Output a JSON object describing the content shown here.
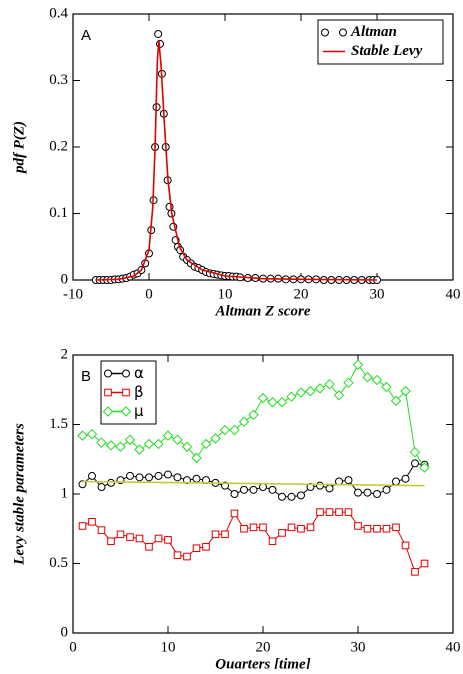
{
  "chart_data": [
    {
      "type": "line",
      "label": "A",
      "xlabel": "Altman Z score",
      "ylabel": "pdf P(Z)",
      "xlim": [
        -10,
        40
      ],
      "xticks": [
        -10,
        0,
        10,
        20,
        30,
        40
      ],
      "ylim": [
        0,
        0.4
      ],
      "yticks": [
        0,
        0.1,
        0.2,
        0.3,
        0.4
      ],
      "legend": "upper right",
      "series": [
        {
          "name": "Altman",
          "color": "#000000",
          "marker": "circle",
          "line": false,
          "x": [
            -7,
            -6.5,
            -6,
            -5.5,
            -5,
            -4.5,
            -4,
            -3.5,
            -3,
            -2.5,
            -2,
            -1.5,
            -1,
            -0.5,
            0,
            0.3,
            0.6,
            0.8,
            1.0,
            1.2,
            1.45,
            1.7,
            1.95,
            2.2,
            2.45,
            2.7,
            2.95,
            3.2,
            3.5,
            3.8,
            4.1,
            4.5,
            5,
            5.5,
            6,
            6.5,
            7,
            7.5,
            8,
            8.5,
            9,
            9.5,
            10,
            10.5,
            11,
            11.5,
            12,
            13,
            14,
            15,
            16,
            17,
            18,
            19,
            20,
            21,
            22,
            23,
            24,
            25,
            26,
            27,
            28,
            29,
            29.5,
            30
          ],
          "values": [
            0,
            0,
            0,
            0,
            0,
            0.001,
            0.001,
            0.002,
            0.003,
            0.005,
            0.008,
            0.01,
            0.015,
            0.025,
            0.04,
            0.075,
            0.12,
            0.2,
            0.26,
            0.37,
            0.355,
            0.31,
            0.25,
            0.2,
            0.15,
            0.11,
            0.1,
            0.08,
            0.06,
            0.05,
            0.045,
            0.035,
            0.03,
            0.025,
            0.02,
            0.018,
            0.015,
            0.012,
            0.01,
            0.009,
            0.008,
            0.007,
            0.006,
            0.006,
            0.005,
            0.005,
            0.004,
            0.003,
            0.003,
            0.002,
            0.002,
            0.002,
            0.001,
            0.001,
            0.001,
            0.001,
            0.001,
            0,
            0,
            0,
            0,
            0,
            0,
            0,
            0,
            0
          ]
        },
        {
          "name": "Stable Levy",
          "color": "#e00000",
          "marker": "none",
          "line": true,
          "x": [
            -7,
            -4,
            -2,
            -1,
            0,
            0.5,
            0.8,
            1.1,
            1.3,
            1.6,
            2,
            2.5,
            3,
            4,
            5,
            7,
            10,
            15,
            20,
            30
          ],
          "values": [
            0,
            0.001,
            0.006,
            0.015,
            0.045,
            0.11,
            0.2,
            0.33,
            0.36,
            0.32,
            0.24,
            0.15,
            0.1,
            0.05,
            0.03,
            0.015,
            0.006,
            0.002,
            0.001,
            0
          ]
        }
      ]
    },
    {
      "type": "line",
      "label": "B",
      "xlabel": "Quarters [time]",
      "ylabel": "Levy stable parameters",
      "xlim": [
        0,
        40
      ],
      "xticks": [
        0,
        10,
        20,
        30,
        40
      ],
      "ylim": [
        0,
        2
      ],
      "yticks": [
        0,
        0.5,
        1,
        1.5,
        2
      ],
      "legend": "upper left",
      "x": [
        1,
        2,
        3,
        4,
        5,
        6,
        7,
        8,
        9,
        10,
        11,
        12,
        13,
        14,
        15,
        16,
        17,
        18,
        19,
        20,
        21,
        22,
        23,
        24,
        25,
        26,
        27,
        28,
        29,
        30,
        31,
        32,
        33,
        34,
        35,
        36,
        37
      ],
      "series": [
        {
          "name": "α",
          "color": "#000000",
          "marker": "circle",
          "line": true,
          "values": [
            1.07,
            1.13,
            1.05,
            1.08,
            1.1,
            1.13,
            1.12,
            1.12,
            1.13,
            1.14,
            1.12,
            1.1,
            1.11,
            1.1,
            1.08,
            1.06,
            1.0,
            1.03,
            1.03,
            1.05,
            1.03,
            0.98,
            0.98,
            0.99,
            1.05,
            1.06,
            1.04,
            1.09,
            1.1,
            1.01,
            1.01,
            1.0,
            1.03,
            1.09,
            1.11,
            1.22,
            1.21
          ]
        },
        {
          "name": "β",
          "color": "#e00000",
          "marker": "square",
          "line": true,
          "values": [
            0.77,
            0.8,
            0.74,
            0.66,
            0.71,
            0.69,
            0.68,
            0.62,
            0.68,
            0.67,
            0.56,
            0.55,
            0.61,
            0.62,
            0.71,
            0.71,
            0.86,
            0.75,
            0.76,
            0.76,
            0.66,
            0.72,
            0.76,
            0.75,
            0.76,
            0.87,
            0.87,
            0.87,
            0.87,
            0.77,
            0.75,
            0.75,
            0.75,
            0.76,
            0.63,
            0.44,
            0.5
          ]
        },
        {
          "name": "μ",
          "color": "#22dd22",
          "marker": "diamond",
          "line": true,
          "values": [
            1.42,
            1.43,
            1.37,
            1.35,
            1.34,
            1.39,
            1.32,
            1.36,
            1.36,
            1.42,
            1.39,
            1.34,
            1.26,
            1.36,
            1.4,
            1.46,
            1.46,
            1.52,
            1.57,
            1.69,
            1.66,
            1.66,
            1.7,
            1.73,
            1.74,
            1.76,
            1.79,
            1.71,
            1.8,
            1.93,
            1.84,
            1.82,
            1.77,
            1.67,
            1.74,
            1.3,
            1.19
          ]
        },
        {
          "color": "#c8c83c",
          "marker": "none",
          "line": true,
          "x": [
            1,
            37
          ],
          "values": [
            1.09,
            1.06
          ]
        }
      ]
    }
  ]
}
